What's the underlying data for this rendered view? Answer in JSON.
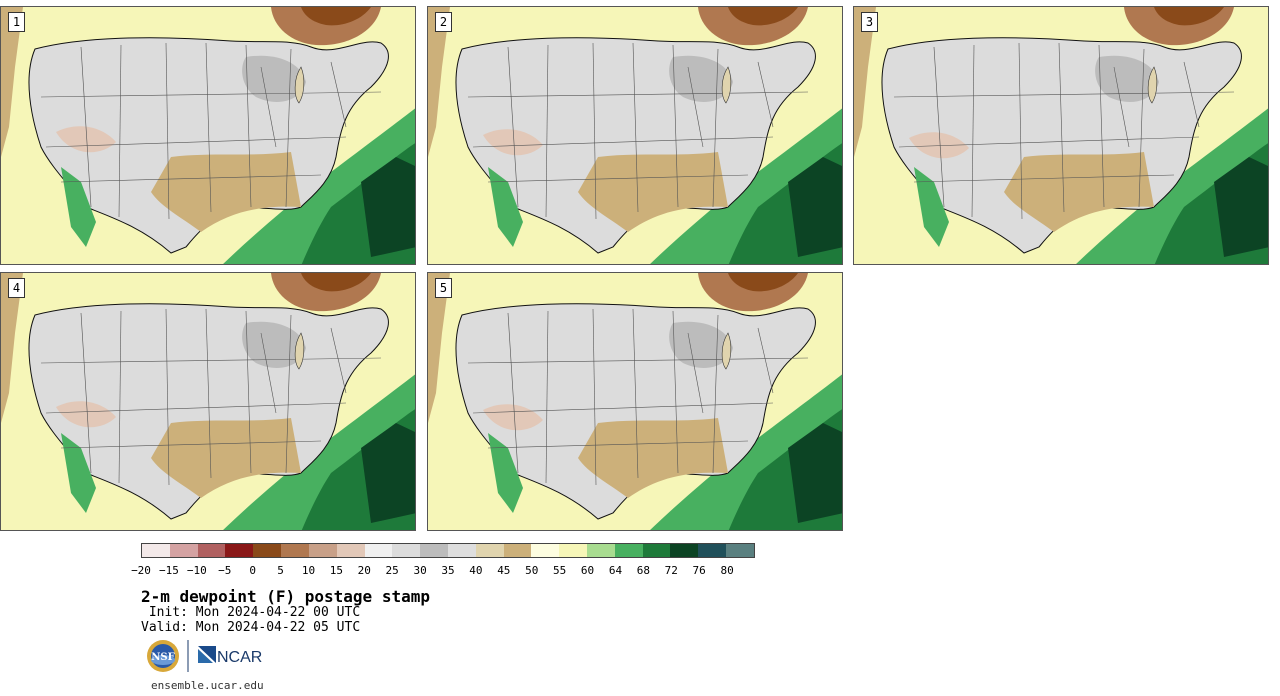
{
  "panels": [
    {
      "label": "1"
    },
    {
      "label": "2"
    },
    {
      "label": "3"
    },
    {
      "label": "4"
    },
    {
      "label": "5"
    }
  ],
  "legend": {
    "colors": [
      "#f3e9e9",
      "#d4a2a2",
      "#b06060",
      "#8a1818",
      "#8a4a1a",
      "#b07850",
      "#c8a088",
      "#e2c8b8",
      "#f0f0f0",
      "#dcdcdc",
      "#bcbcbc",
      "#dedede",
      "#e0d4ae",
      "#ccb07a",
      "#fdfde0",
      "#f6f6b8",
      "#a8dc90",
      "#48b060",
      "#1e7a3a",
      "#0c4424",
      "#20505a",
      "#5a8080"
    ],
    "ticks": [
      "−20",
      "−15",
      "−10",
      "−5",
      "0",
      "5",
      "10",
      "15",
      "20",
      "25",
      "30",
      "35",
      "40",
      "45",
      "50",
      "55",
      "60",
      "64",
      "68",
      "72",
      "76",
      "80"
    ]
  },
  "title": "2-m dewpoint (F) postage stamp",
  "init": " Init: Mon 2024-04-22 00 UTC",
  "valid": "Valid: Mon 2024-04-22 05 UTC",
  "logos": {
    "nsf": "NSF",
    "ncar": "NCAR"
  },
  "site": "ensemble.ucar.edu"
}
